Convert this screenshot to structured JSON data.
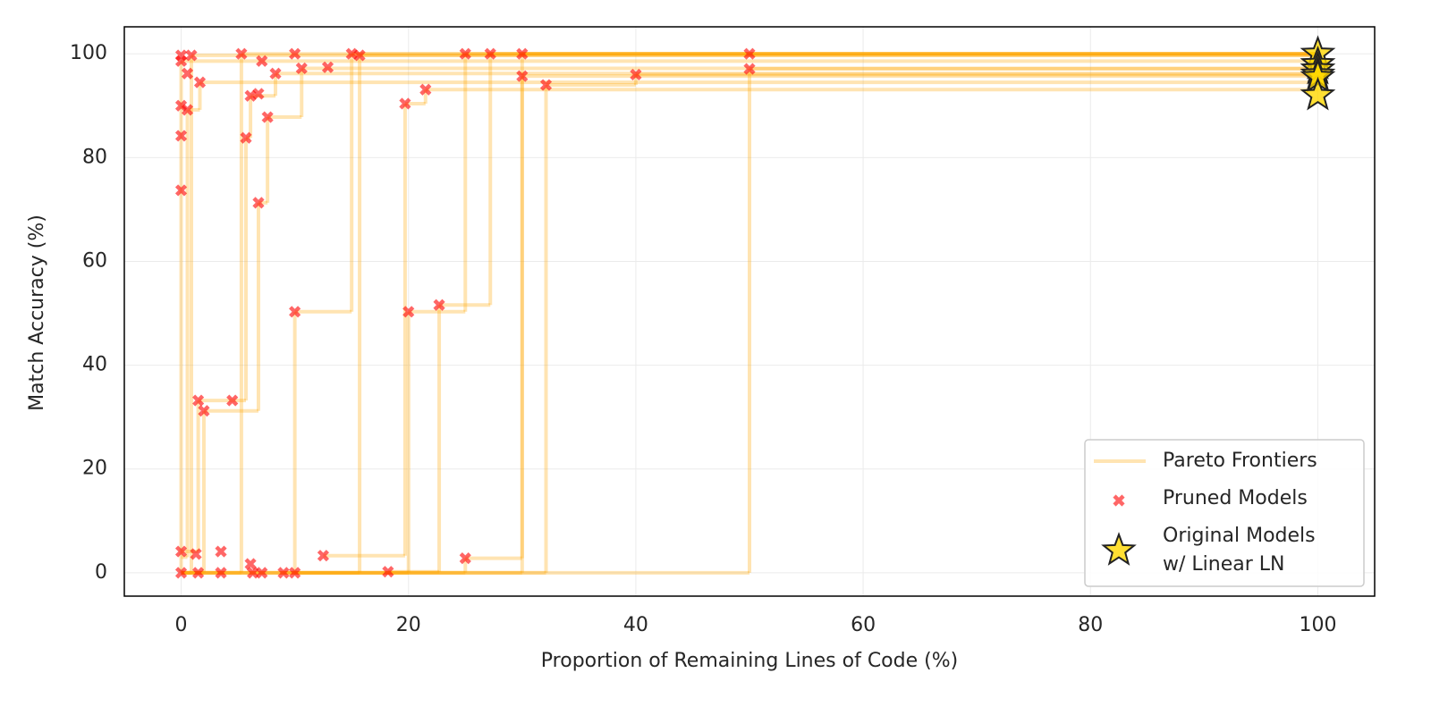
{
  "chart_data": {
    "type": "pareto-scatter",
    "xlabel": "Proportion of Remaining Lines of Code (%)",
    "ylabel": "Match Accuracy (%)",
    "xlim": [
      -5,
      105
    ],
    "ylim": [
      -4.5,
      105.2
    ],
    "xticks": [
      0,
      20,
      40,
      60,
      80,
      100
    ],
    "yticks": [
      0,
      20,
      40,
      60,
      80,
      100
    ],
    "grid": true,
    "legend": "lower right",
    "series": [
      {
        "name": "Pareto Frontiers",
        "type": "step",
        "color": "#ffa500",
        "lines": [
          {
            "x": [
              0,
              0,
              0,
              0,
              0,
              100
            ],
            "values": [
              0,
              73.7,
              84.2,
              90,
              98.6,
              98.6
            ]
          },
          {
            "x": [
              0,
              1.5,
              4.5,
              5.7,
              6.1,
              8.3,
              100
            ],
            "values": [
              4.1,
              33.2,
              33.2,
              83.8,
              91.9,
              96.2,
              96.2
            ]
          },
          {
            "x": [
              0,
              2,
              5.5,
              6.8,
              7.6,
              10.6,
              100
            ],
            "values": [
              0,
              31.2,
              31.2,
              71.3,
              87.8,
              97.2,
              97.2
            ]
          },
          {
            "x": [
              0,
              0.55,
              1.65,
              100
            ],
            "values": [
              3,
              89.2,
              94.5,
              94.5
            ]
          },
          {
            "x": [
              0,
              0.9,
              100
            ],
            "values": [
              0,
              99.7,
              99.7
            ]
          },
          {
            "x": [
              0,
              5.3,
              100
            ],
            "values": [
              0,
              100,
              100
            ]
          },
          {
            "x": [
              9,
              10,
              15,
              100
            ],
            "values": [
              0,
              50.3,
              100,
              100
            ]
          },
          {
            "x": [
              10,
              15.7,
              100
            ],
            "values": [
              0,
              99.7,
              99.7
            ]
          },
          {
            "x": [
              12.5,
              19.7,
              21.5,
              100
            ],
            "values": [
              3.3,
              90.4,
              93.1,
              93.1
            ]
          },
          {
            "x": [
              18.2,
              22.7,
              27.2,
              100
            ],
            "values": [
              0.2,
              51.6,
              100,
              100
            ]
          },
          {
            "x": [
              0,
              25,
              30,
              100
            ],
            "values": [
              0,
              2.8,
              95.7,
              95.7
            ]
          },
          {
            "x": [
              10,
              20,
              25,
              100
            ],
            "values": [
              0,
              50.3,
              100,
              100
            ]
          },
          {
            "x": [
              0,
              30,
              100
            ],
            "values": [
              0,
              100,
              100
            ]
          },
          {
            "x": [
              0,
              32.1,
              40,
              100
            ],
            "values": [
              0,
              94,
              96,
              96
            ]
          },
          {
            "x": [
              0,
              50,
              100
            ],
            "values": [
              0,
              97.1,
              97.1
            ]
          }
        ]
      },
      {
        "name": "Pruned Models",
        "type": "cross",
        "color": "#ff0000",
        "x": [
          0,
          0,
          1.5,
          1.3,
          3.5,
          3.5,
          6.1,
          6.3,
          7.1,
          9,
          10,
          12.5,
          18.2,
          25,
          1.5,
          2,
          4.5,
          0,
          0,
          0,
          0.55,
          0,
          0,
          0.55,
          0.9,
          1.65,
          5.3,
          5.7,
          6.1,
          6.8,
          7.1,
          6.8,
          7.6,
          8.3,
          10,
          10.6,
          12.9,
          15,
          15.7,
          19.7,
          21.5,
          25,
          27.2,
          30,
          30,
          32.1,
          40,
          50,
          50,
          10,
          20,
          22.7
        ],
        "values": [
          0,
          4.1,
          0,
          3.6,
          4.1,
          0,
          1.7,
          0,
          0,
          0,
          0,
          3.3,
          0.2,
          2.8,
          33.2,
          31.2,
          33.2,
          73.7,
          84.2,
          90,
          89.2,
          98.6,
          99.7,
          96.2,
          99.7,
          94.5,
          100,
          83.8,
          91.9,
          92.3,
          98.6,
          71.3,
          87.8,
          96.2,
          100,
          97.2,
          97.4,
          100,
          99.7,
          90.4,
          93.1,
          100,
          100,
          100,
          95.7,
          94,
          96,
          100,
          97.1,
          50.3,
          50.3,
          51.6
        ]
      },
      {
        "name": [
          "Original Models",
          "w/ Linear LN"
        ],
        "type": "star",
        "color": "#ffd700",
        "x": [
          100,
          100,
          100,
          100,
          100,
          100
        ],
        "values": [
          100,
          98,
          97,
          96,
          95.5,
          92
        ]
      }
    ]
  }
}
